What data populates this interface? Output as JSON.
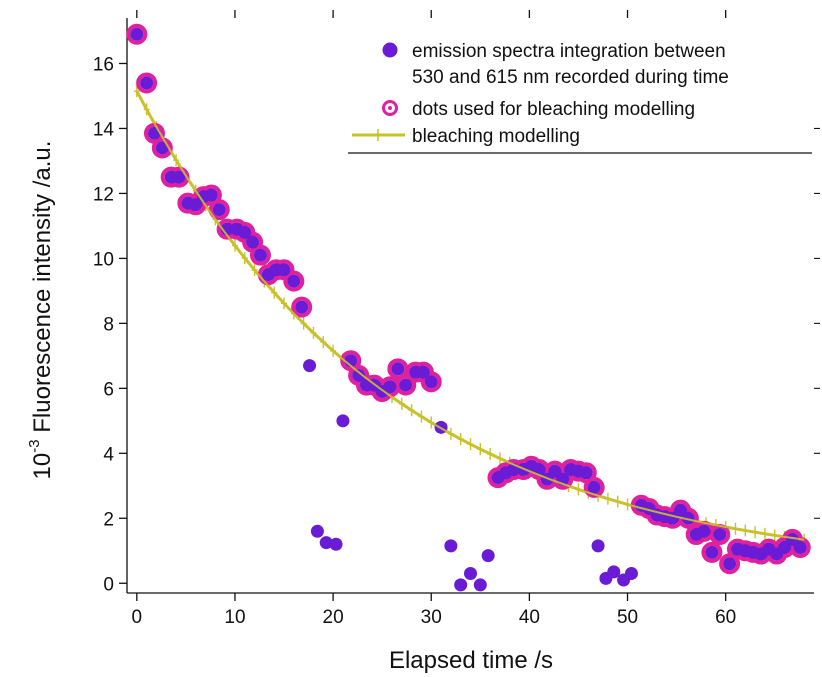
{
  "chart_data": {
    "type": "scatter",
    "title": "",
    "xlabel": "Elapsed time /s",
    "ylabel_prefix": "10",
    "ylabel_exponent": "-3",
    "ylabel_main": " Fluorescence intensity /a.u.",
    "xlim": [
      -1,
      69
    ],
    "ylim": [
      -0.3,
      17.4
    ],
    "x_ticks": [
      "0",
      "10",
      "20",
      "30",
      "40",
      "50",
      "60"
    ],
    "y_ticks": [
      "0",
      "2",
      "4",
      "6",
      "8",
      "10",
      "12",
      "14",
      "16"
    ],
    "legend": {
      "placement": "top-right",
      "entries": [
        {
          "label_line1": "emission spectra integration between",
          "label_line2": "530 and 615 nm  recorded during time"
        },
        {
          "label_line1": "dots used for bleaching modelling"
        },
        {
          "label_line1": "bleaching modelling"
        }
      ]
    },
    "colors": {
      "emission": "#6a1bd6",
      "ring": "#e0219e",
      "model": "#c9c12a",
      "axis": "#111111"
    },
    "series": [
      {
        "name": "emission spectra integration between 530 and 615 nm recorded during time",
        "marker": "filled-circle",
        "points": [
          [
            0,
            16.9
          ],
          [
            1,
            15.4
          ],
          [
            1.8,
            13.85
          ],
          [
            2.6,
            13.4
          ],
          [
            3.5,
            12.5
          ],
          [
            4.3,
            12.5
          ],
          [
            5.2,
            11.7
          ],
          [
            6,
            11.65
          ],
          [
            6.8,
            11.9
          ],
          [
            7.6,
            11.95
          ],
          [
            8.4,
            11.5
          ],
          [
            9.2,
            10.9
          ],
          [
            10.2,
            10.9
          ],
          [
            11,
            10.8
          ],
          [
            11.8,
            10.5
          ],
          [
            12.6,
            10.1
          ],
          [
            13.4,
            9.5
          ],
          [
            14.2,
            9.65
          ],
          [
            15,
            9.65
          ],
          [
            16,
            9.3
          ],
          [
            16.8,
            8.5
          ],
          [
            17.6,
            6.7
          ],
          [
            18.4,
            1.6
          ],
          [
            19.3,
            1.25
          ],
          [
            20.3,
            1.2
          ],
          [
            21,
            5.0
          ],
          [
            21.8,
            6.85
          ],
          [
            22.6,
            6.4
          ],
          [
            23.4,
            6.1
          ],
          [
            24.2,
            6.1
          ],
          [
            25,
            5.9
          ],
          [
            25.8,
            6.05
          ],
          [
            26.6,
            6.6
          ],
          [
            27.4,
            6.1
          ],
          [
            28.4,
            6.5
          ],
          [
            29.2,
            6.5
          ],
          [
            30,
            6.2
          ],
          [
            31,
            4.8
          ],
          [
            32,
            1.15
          ],
          [
            33,
            -0.05
          ],
          [
            34,
            0.3
          ],
          [
            35,
            -0.05
          ],
          [
            35.8,
            0.85
          ],
          [
            36.8,
            3.25
          ],
          [
            37.6,
            3.4
          ],
          [
            38.4,
            3.5
          ],
          [
            39.4,
            3.5
          ],
          [
            40.2,
            3.6
          ],
          [
            41,
            3.5
          ],
          [
            41.8,
            3.2
          ],
          [
            42.6,
            3.45
          ],
          [
            43.4,
            3.2
          ],
          [
            44.2,
            3.5
          ],
          [
            45,
            3.45
          ],
          [
            45.8,
            3.4
          ],
          [
            46.6,
            2.95
          ],
          [
            47,
            1.15
          ],
          [
            47.8,
            0.15
          ],
          [
            48.6,
            0.35
          ],
          [
            49.6,
            0.1
          ],
          [
            50.4,
            0.3
          ],
          [
            51.4,
            2.4
          ],
          [
            52.2,
            2.3
          ],
          [
            53,
            2.1
          ],
          [
            53.8,
            2.05
          ],
          [
            54.6,
            2.0
          ],
          [
            55.4,
            2.25
          ],
          [
            56.2,
            2.0
          ],
          [
            57,
            1.5
          ],
          [
            57.8,
            1.6
          ],
          [
            58.6,
            0.95
          ],
          [
            59.4,
            1.5
          ],
          [
            60.4,
            0.6
          ],
          [
            61.2,
            1.05
          ],
          [
            62,
            1.0
          ],
          [
            62.8,
            0.95
          ],
          [
            63.6,
            0.9
          ],
          [
            64.4,
            1.05
          ],
          [
            65.2,
            0.9
          ],
          [
            66,
            1.1
          ],
          [
            66.8,
            1.35
          ],
          [
            67.6,
            1.1
          ]
        ]
      },
      {
        "name": "dots used for bleaching modelling",
        "marker": "ring",
        "points": [
          [
            0,
            16.9
          ],
          [
            1,
            15.4
          ],
          [
            1.8,
            13.85
          ],
          [
            2.6,
            13.4
          ],
          [
            3.5,
            12.5
          ],
          [
            4.3,
            12.5
          ],
          [
            5.2,
            11.7
          ],
          [
            6,
            11.65
          ],
          [
            6.8,
            11.9
          ],
          [
            7.6,
            11.95
          ],
          [
            8.4,
            11.5
          ],
          [
            9.2,
            10.9
          ],
          [
            10.2,
            10.9
          ],
          [
            11,
            10.8
          ],
          [
            11.8,
            10.5
          ],
          [
            12.6,
            10.1
          ],
          [
            13.4,
            9.5
          ],
          [
            14.2,
            9.65
          ],
          [
            15,
            9.65
          ],
          [
            16,
            9.3
          ],
          [
            16.8,
            8.5
          ],
          [
            21.8,
            6.85
          ],
          [
            22.6,
            6.4
          ],
          [
            23.4,
            6.1
          ],
          [
            24.2,
            6.1
          ],
          [
            25,
            5.9
          ],
          [
            25.8,
            6.05
          ],
          [
            26.6,
            6.6
          ],
          [
            27.4,
            6.1
          ],
          [
            28.4,
            6.5
          ],
          [
            29.2,
            6.5
          ],
          [
            30,
            6.2
          ],
          [
            36.8,
            3.25
          ],
          [
            37.6,
            3.4
          ],
          [
            38.4,
            3.5
          ],
          [
            39.4,
            3.5
          ],
          [
            40.2,
            3.6
          ],
          [
            41,
            3.5
          ],
          [
            41.8,
            3.2
          ],
          [
            42.6,
            3.45
          ],
          [
            43.4,
            3.2
          ],
          [
            44.2,
            3.5
          ],
          [
            45,
            3.45
          ],
          [
            45.8,
            3.4
          ],
          [
            46.6,
            2.95
          ],
          [
            51.4,
            2.4
          ],
          [
            52.2,
            2.3
          ],
          [
            53,
            2.1
          ],
          [
            53.8,
            2.05
          ],
          [
            54.6,
            2.0
          ],
          [
            55.4,
            2.25
          ],
          [
            56.2,
            2.0
          ],
          [
            57,
            1.5
          ],
          [
            57.8,
            1.6
          ],
          [
            58.6,
            0.95
          ],
          [
            59.4,
            1.5
          ],
          [
            60.4,
            0.6
          ],
          [
            61.2,
            1.05
          ],
          [
            62,
            1.0
          ],
          [
            62.8,
            0.95
          ],
          [
            63.6,
            0.9
          ],
          [
            64.4,
            1.05
          ],
          [
            65.2,
            0.9
          ],
          [
            66,
            1.1
          ],
          [
            66.8,
            1.35
          ],
          [
            67.6,
            1.1
          ]
        ]
      },
      {
        "name": "bleaching modelling",
        "marker": "line-plus",
        "x_range": [
          0,
          68
        ],
        "x_step": 1,
        "model": {
          "form": "exponential decay",
          "y0": 0.25,
          "A": 14.9,
          "tau": 26.0
        }
      }
    ]
  }
}
